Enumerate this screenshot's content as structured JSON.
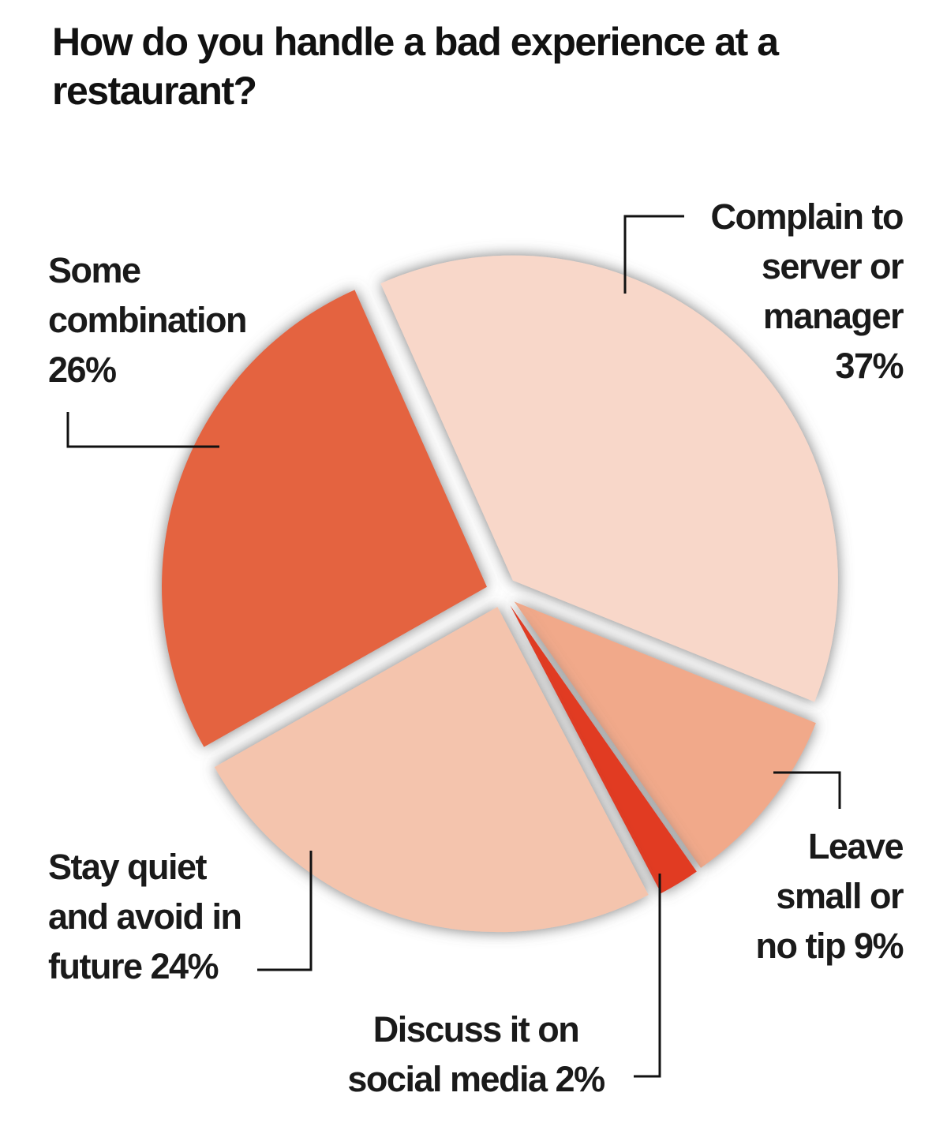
{
  "title": "How do you handle a bad experience at a restaurant?",
  "chart_data": {
    "type": "pie",
    "title": "How do you handle a bad experience at a restaurant?",
    "slices": [
      {
        "label": "Complain to server or manager",
        "value": 37,
        "display": "37%",
        "color": "#f8d7c9"
      },
      {
        "label": "Leave small or no tip",
        "value": 9,
        "display": "9%",
        "color": "#f1a98a"
      },
      {
        "label": "Discuss it on social media",
        "value": 2,
        "display": "2%",
        "color": "#e13a24"
      },
      {
        "label": "Stay quiet and avoid in future",
        "value": 24,
        "display": "24%",
        "color": "#f4c4ad"
      },
      {
        "label": "Some combination",
        "value": 26,
        "display": "26%",
        "color": "#e46341"
      }
    ],
    "exploded": true,
    "labels_with_leader_lines": true
  },
  "labels": {
    "complain": [
      "Complain to",
      "server or",
      "manager",
      "37%"
    ],
    "tip": [
      "Leave",
      "small or",
      "no tip 9%"
    ],
    "social": [
      "Discuss it on",
      "social media 2%"
    ],
    "quiet": [
      "Stay quiet",
      "and avoid in",
      "future 24%"
    ],
    "combo": [
      "Some",
      "combination",
      "26%"
    ]
  }
}
